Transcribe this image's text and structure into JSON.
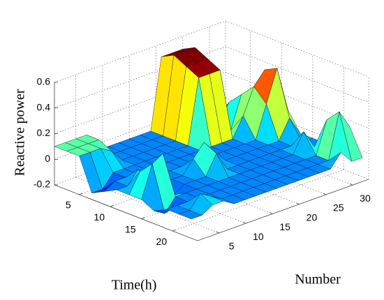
{
  "chart_data": {
    "type": "surface",
    "colormap": "jet",
    "xlabel": "Time(h)",
    "ylabel": "Number",
    "zlabel": "Reactive power",
    "x": [
      1,
      3,
      5,
      7,
      9,
      11,
      13,
      15,
      17,
      19,
      21,
      23
    ],
    "y": [
      1,
      3,
      5,
      7,
      9,
      11,
      13,
      15,
      17,
      19,
      21,
      23,
      25,
      27,
      29,
      31,
      33
    ],
    "values": [
      [
        0.1,
        0.1,
        0.1,
        0.1,
        -0.05,
        -0.05,
        -0.05,
        -0.05,
        -0.05,
        -0.05,
        0.5,
        0.5,
        0.5,
        0.05,
        -0.05,
        -0.05,
        -0.05
      ],
      [
        0.1,
        0.1,
        0.1,
        0.1,
        -0.05,
        -0.05,
        -0.05,
        -0.05,
        -0.05,
        -0.05,
        0.55,
        0.55,
        0.55,
        0.05,
        -0.05,
        -0.05,
        -0.05
      ],
      [
        0.1,
        0.1,
        0.1,
        0.05,
        -0.05,
        -0.05,
        -0.05,
        -0.05,
        -0.05,
        -0.05,
        0.5,
        0.5,
        0.5,
        -0.05,
        0.1,
        -0.05,
        -0.05
      ],
      [
        -0.15,
        -0.15,
        -0.05,
        -0.05,
        -0.05,
        -0.05,
        -0.05,
        -0.05,
        -0.05,
        -0.05,
        0.45,
        0.45,
        0.45,
        -0.05,
        0.2,
        0.1,
        -0.05
      ],
      [
        -0.1,
        -0.05,
        -0.05,
        -0.05,
        -0.05,
        -0.05,
        -0.05,
        -0.05,
        -0.05,
        -0.05,
        -0.05,
        -0.05,
        -0.05,
        0.1,
        0.3,
        0.4,
        0.05
      ],
      [
        -0.05,
        -0.05,
        0.05,
        -0.05,
        -0.05,
        -0.05,
        -0.05,
        -0.05,
        -0.05,
        -0.05,
        -0.05,
        -0.05,
        -0.05,
        -0.05,
        0.2,
        0.45,
        0.1
      ],
      [
        -0.05,
        0.1,
        -0.05,
        -0.05,
        -0.05,
        -0.05,
        0.05,
        0.15,
        0.05,
        -0.05,
        -0.05,
        -0.05,
        -0.05,
        -0.05,
        -0.05,
        0.1,
        -0.05
      ],
      [
        -0.05,
        0.2,
        0.25,
        -0.1,
        -0.05,
        -0.05,
        -0.05,
        0.1,
        -0.05,
        -0.05,
        -0.05,
        -0.05,
        -0.05,
        -0.05,
        -0.05,
        -0.05,
        -0.05
      ],
      [
        -0.1,
        -0.15,
        -0.05,
        -0.05,
        -0.05,
        -0.05,
        -0.05,
        -0.05,
        -0.05,
        -0.05,
        -0.05,
        -0.05,
        -0.05,
        -0.05,
        0.1,
        -0.05,
        -0.05
      ],
      [
        -0.05,
        -0.05,
        -0.05,
        -0.05,
        -0.05,
        -0.05,
        -0.05,
        -0.05,
        -0.05,
        -0.05,
        -0.05,
        -0.05,
        -0.05,
        -0.05,
        -0.05,
        0.2,
        0.1
      ],
      [
        -0.05,
        -0.05,
        0.05,
        0.0,
        -0.05,
        -0.05,
        -0.05,
        -0.05,
        -0.05,
        -0.05,
        -0.05,
        -0.05,
        -0.05,
        -0.05,
        -0.05,
        0.3,
        0.15
      ],
      [
        -0.05,
        -0.05,
        0.0,
        0.0,
        -0.05,
        -0.05,
        -0.05,
        -0.05,
        -0.05,
        -0.05,
        -0.05,
        -0.05,
        -0.05,
        -0.05,
        0.05,
        -0.05,
        -0.05
      ]
    ],
    "xlim": [
      1,
      24
    ],
    "ylim": [
      1,
      33
    ],
    "zlim": [
      -0.2,
      0.6
    ],
    "xticks": [
      5,
      10,
      15,
      20
    ],
    "yticks": [
      5,
      10,
      15,
      20,
      25,
      30
    ],
    "zticks": [
      -0.2,
      0,
      0.2,
      0.4,
      0.6
    ],
    "grid": true
  }
}
